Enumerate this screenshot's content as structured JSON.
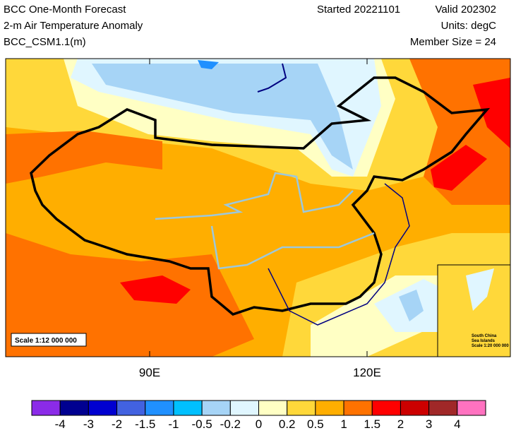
{
  "header": {
    "left": [
      "BCC One-Month Forecast",
      "2-m Air Temperature Anomaly",
      "BCC_CSM1.1(m)"
    ],
    "started": "Started 20221101",
    "valid": "Valid 202302",
    "units": "Units: degC",
    "member_size": "Member Size = 24"
  },
  "map": {
    "lon_labels": [
      "90E",
      "120E"
    ],
    "scale": "Scale 1:12 000 000",
    "inset": [
      "South China",
      "Sea Islands",
      "Scale 1:20 000 000"
    ]
  },
  "colorbar": {
    "labels": [
      "-4",
      "-3",
      "-2",
      "-1.5",
      "-1",
      "-0.5",
      "-0.2",
      "0",
      "0.2",
      "0.5",
      "1",
      "1.5",
      "2",
      "3",
      "4"
    ],
    "colors": [
      "#8b2be8",
      "#000090",
      "#0000d0",
      "#4262e0",
      "#2090ff",
      "#00c0ff",
      "#a6d4f6",
      "#e0f6ff",
      "#ffffc4",
      "#ffd83a",
      "#ffae00",
      "#ff7200",
      "#ff0000",
      "#cc0000",
      "#a02828",
      "#ff72c0"
    ]
  }
}
